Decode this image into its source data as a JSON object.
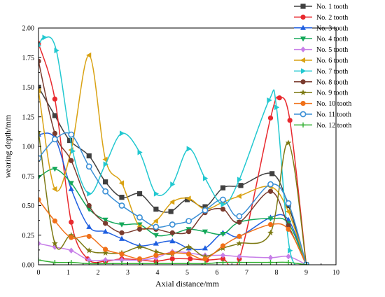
{
  "chart_data": {
    "type": "line",
    "title": "",
    "xlabel": "Axial distance/mm",
    "ylabel": "wearing depth/mm",
    "xlim": [
      0,
      10
    ],
    "ylim": [
      0,
      2.0
    ],
    "x_ticks": [
      "0",
      "1",
      "2",
      "3",
      "4",
      "5",
      "6",
      "7",
      "8",
      "9",
      "10"
    ],
    "y_ticks": [
      "0.00",
      "0.25",
      "0.50",
      "0.75",
      "1.00",
      "1.25",
      "1.50",
      "1.75",
      "2.00"
    ],
    "grid": false,
    "legend_position": "outside-top-right",
    "series": [
      {
        "name": "No.  1 tooth",
        "color": "#404040",
        "marker": "square",
        "x": [
          0,
          0.55,
          1.05,
          1.7,
          2.25,
          2.8,
          3.4,
          3.95,
          4.45,
          5.0,
          5.6,
          6.2,
          6.8,
          7.85,
          8.4,
          9.0
        ],
        "y": [
          1.5,
          1.26,
          1.05,
          0.92,
          0.7,
          0.57,
          0.6,
          0.47,
          0.45,
          0.55,
          0.49,
          0.65,
          0.67,
          0.77,
          0.5,
          0.0
        ]
      },
      {
        "name": "No.  2 tooth",
        "color": "#e8292e",
        "marker": "circle",
        "x": [
          0,
          0.55,
          1.1,
          1.65,
          2.25,
          2.8,
          3.4,
          3.95,
          4.5,
          5.1,
          5.65,
          6.2,
          6.75,
          7.8,
          8.1,
          8.45,
          9.0
        ],
        "y": [
          1.87,
          1.4,
          0.36,
          0.05,
          0.03,
          0.05,
          0.04,
          0.03,
          0.05,
          0.05,
          0.04,
          0.05,
          0.05,
          1.24,
          1.41,
          1.22,
          0.0
        ]
      },
      {
        "name": "No.  3 tooth",
        "color": "#1f5fe0",
        "marker": "triangle-up",
        "x": [
          0,
          0.55,
          1.1,
          1.7,
          2.25,
          2.8,
          3.4,
          3.95,
          4.5,
          5.05,
          5.6,
          6.2,
          6.75,
          7.8,
          8.4,
          9.0
        ],
        "y": [
          1.1,
          1.07,
          0.64,
          0.32,
          0.28,
          0.22,
          0.16,
          0.18,
          0.2,
          0.14,
          0.14,
          0.27,
          0.24,
          0.4,
          0.38,
          0.0
        ]
      },
      {
        "name": "No.  4 tooth",
        "color": "#14a85a",
        "marker": "triangle-down",
        "x": [
          0,
          0.55,
          1.1,
          1.7,
          2.25,
          2.8,
          3.4,
          3.95,
          4.5,
          5.05,
          5.6,
          6.2,
          6.75,
          7.8,
          8.4,
          9.0
        ],
        "y": [
          0.74,
          0.81,
          0.69,
          0.47,
          0.38,
          0.34,
          0.34,
          0.25,
          0.26,
          0.3,
          0.28,
          0.26,
          0.36,
          0.39,
          0.35,
          0.0
        ]
      },
      {
        "name": "No.  5 tooth",
        "color": "#c77ee8",
        "marker": "diamond",
        "x": [
          0,
          0.55,
          1.1,
          1.7,
          2.25,
          2.8,
          3.4,
          3.95,
          4.5,
          5.05,
          5.6,
          6.2,
          6.75,
          7.8,
          8.4,
          9.0
        ],
        "y": [
          0.18,
          0.15,
          0.12,
          0.04,
          0.04,
          0.04,
          0.04,
          0.06,
          0.11,
          0.1,
          0.08,
          0.08,
          0.07,
          0.06,
          0.07,
          0.0
        ]
      },
      {
        "name": "No.  6 tooth",
        "color": "#d9a213",
        "marker": "triangle-left",
        "x": [
          0,
          0.55,
          1.1,
          1.7,
          2.25,
          2.8,
          3.4,
          3.95,
          4.5,
          5.05,
          5.6,
          6.2,
          6.75,
          7.8,
          8.4,
          9.0
        ],
        "y": [
          1.47,
          0.64,
          0.97,
          1.77,
          0.89,
          0.69,
          0.32,
          0.37,
          0.53,
          0.56,
          0.47,
          0.53,
          0.58,
          0.66,
          0.45,
          0.0
        ]
      },
      {
        "name": "No.  7 tooth",
        "color": "#22c8d0",
        "marker": "triangle-right",
        "x": [
          0,
          0.2,
          0.6,
          1.15,
          1.7,
          2.25,
          2.8,
          3.4,
          3.95,
          4.5,
          5.05,
          5.6,
          6.2,
          6.75,
          7.75,
          8.0,
          8.45,
          9.0
        ],
        "y": [
          1.85,
          1.92,
          1.81,
          0.96,
          0.6,
          0.85,
          1.11,
          0.95,
          0.6,
          0.68,
          0.98,
          0.73,
          0.51,
          0.72,
          1.39,
          1.33,
          0.12,
          0.0
        ]
      },
      {
        "name": "No.  8 tooth",
        "color": "#7a3b2e",
        "marker": "circle",
        "x": [
          0,
          0.55,
          1.1,
          1.7,
          2.25,
          2.8,
          3.4,
          3.95,
          4.5,
          5.05,
          5.6,
          6.2,
          6.75,
          7.8,
          8.4,
          9.0
        ],
        "y": [
          1.72,
          1.11,
          0.88,
          0.5,
          0.35,
          0.27,
          0.3,
          0.3,
          0.27,
          0.28,
          0.44,
          0.47,
          0.36,
          0.62,
          0.33,
          0.0
        ]
      },
      {
        "name": "No.  9 tooth",
        "color": "#7d7a14",
        "marker": "star",
        "x": [
          0,
          0.55,
          1.1,
          1.7,
          2.25,
          2.8,
          3.4,
          3.95,
          4.5,
          5.05,
          5.6,
          6.2,
          6.75,
          7.8,
          8.4,
          9.0
        ],
        "y": [
          1.12,
          0.18,
          0.25,
          0.12,
          0.1,
          0.1,
          0.15,
          0.11,
          0.09,
          0.15,
          0.07,
          0.14,
          0.18,
          0.27,
          1.03,
          0.0
        ]
      },
      {
        "name": "No. 10 tooth",
        "color": "#f07018",
        "marker": "circle",
        "x": [
          0,
          0.55,
          1.1,
          1.7,
          2.25,
          2.8,
          3.4,
          3.95,
          4.5,
          5.05,
          5.6,
          6.2,
          6.75,
          7.8,
          8.4,
          9.0
        ],
        "y": [
          0.55,
          0.37,
          0.23,
          0.24,
          0.13,
          0.09,
          0.05,
          0.08,
          0.1,
          0.09,
          0.05,
          0.16,
          0.24,
          0.34,
          0.3,
          0.0
        ]
      },
      {
        "name": "No. 11 tooth",
        "color": "#3a8fd6",
        "marker": "circle-open",
        "x": [
          0,
          0.55,
          1.1,
          1.7,
          2.25,
          2.8,
          3.4,
          3.95,
          4.5,
          5.05,
          5.6,
          6.2,
          6.75,
          7.8,
          8.4,
          9.0
        ],
        "y": [
          0.9,
          1.06,
          1.1,
          0.83,
          0.62,
          0.5,
          0.4,
          0.32,
          0.34,
          0.37,
          0.46,
          0.55,
          0.41,
          0.68,
          0.52,
          0.0
        ]
      },
      {
        "name": "No. 12 tooth",
        "color": "#33b032",
        "marker": "plus",
        "x": [
          0,
          0.55,
          1.1,
          1.7,
          2.25,
          2.8,
          3.4,
          3.95,
          4.5,
          5.05,
          5.6,
          6.2,
          6.75,
          7.8,
          8.4,
          9.0
        ],
        "y": [
          0.04,
          0.02,
          0.02,
          0.01,
          0.01,
          0.01,
          0.01,
          0.01,
          0.01,
          0.01,
          0.01,
          0.02,
          0.02,
          0.02,
          0.02,
          0.0
        ]
      }
    ]
  }
}
